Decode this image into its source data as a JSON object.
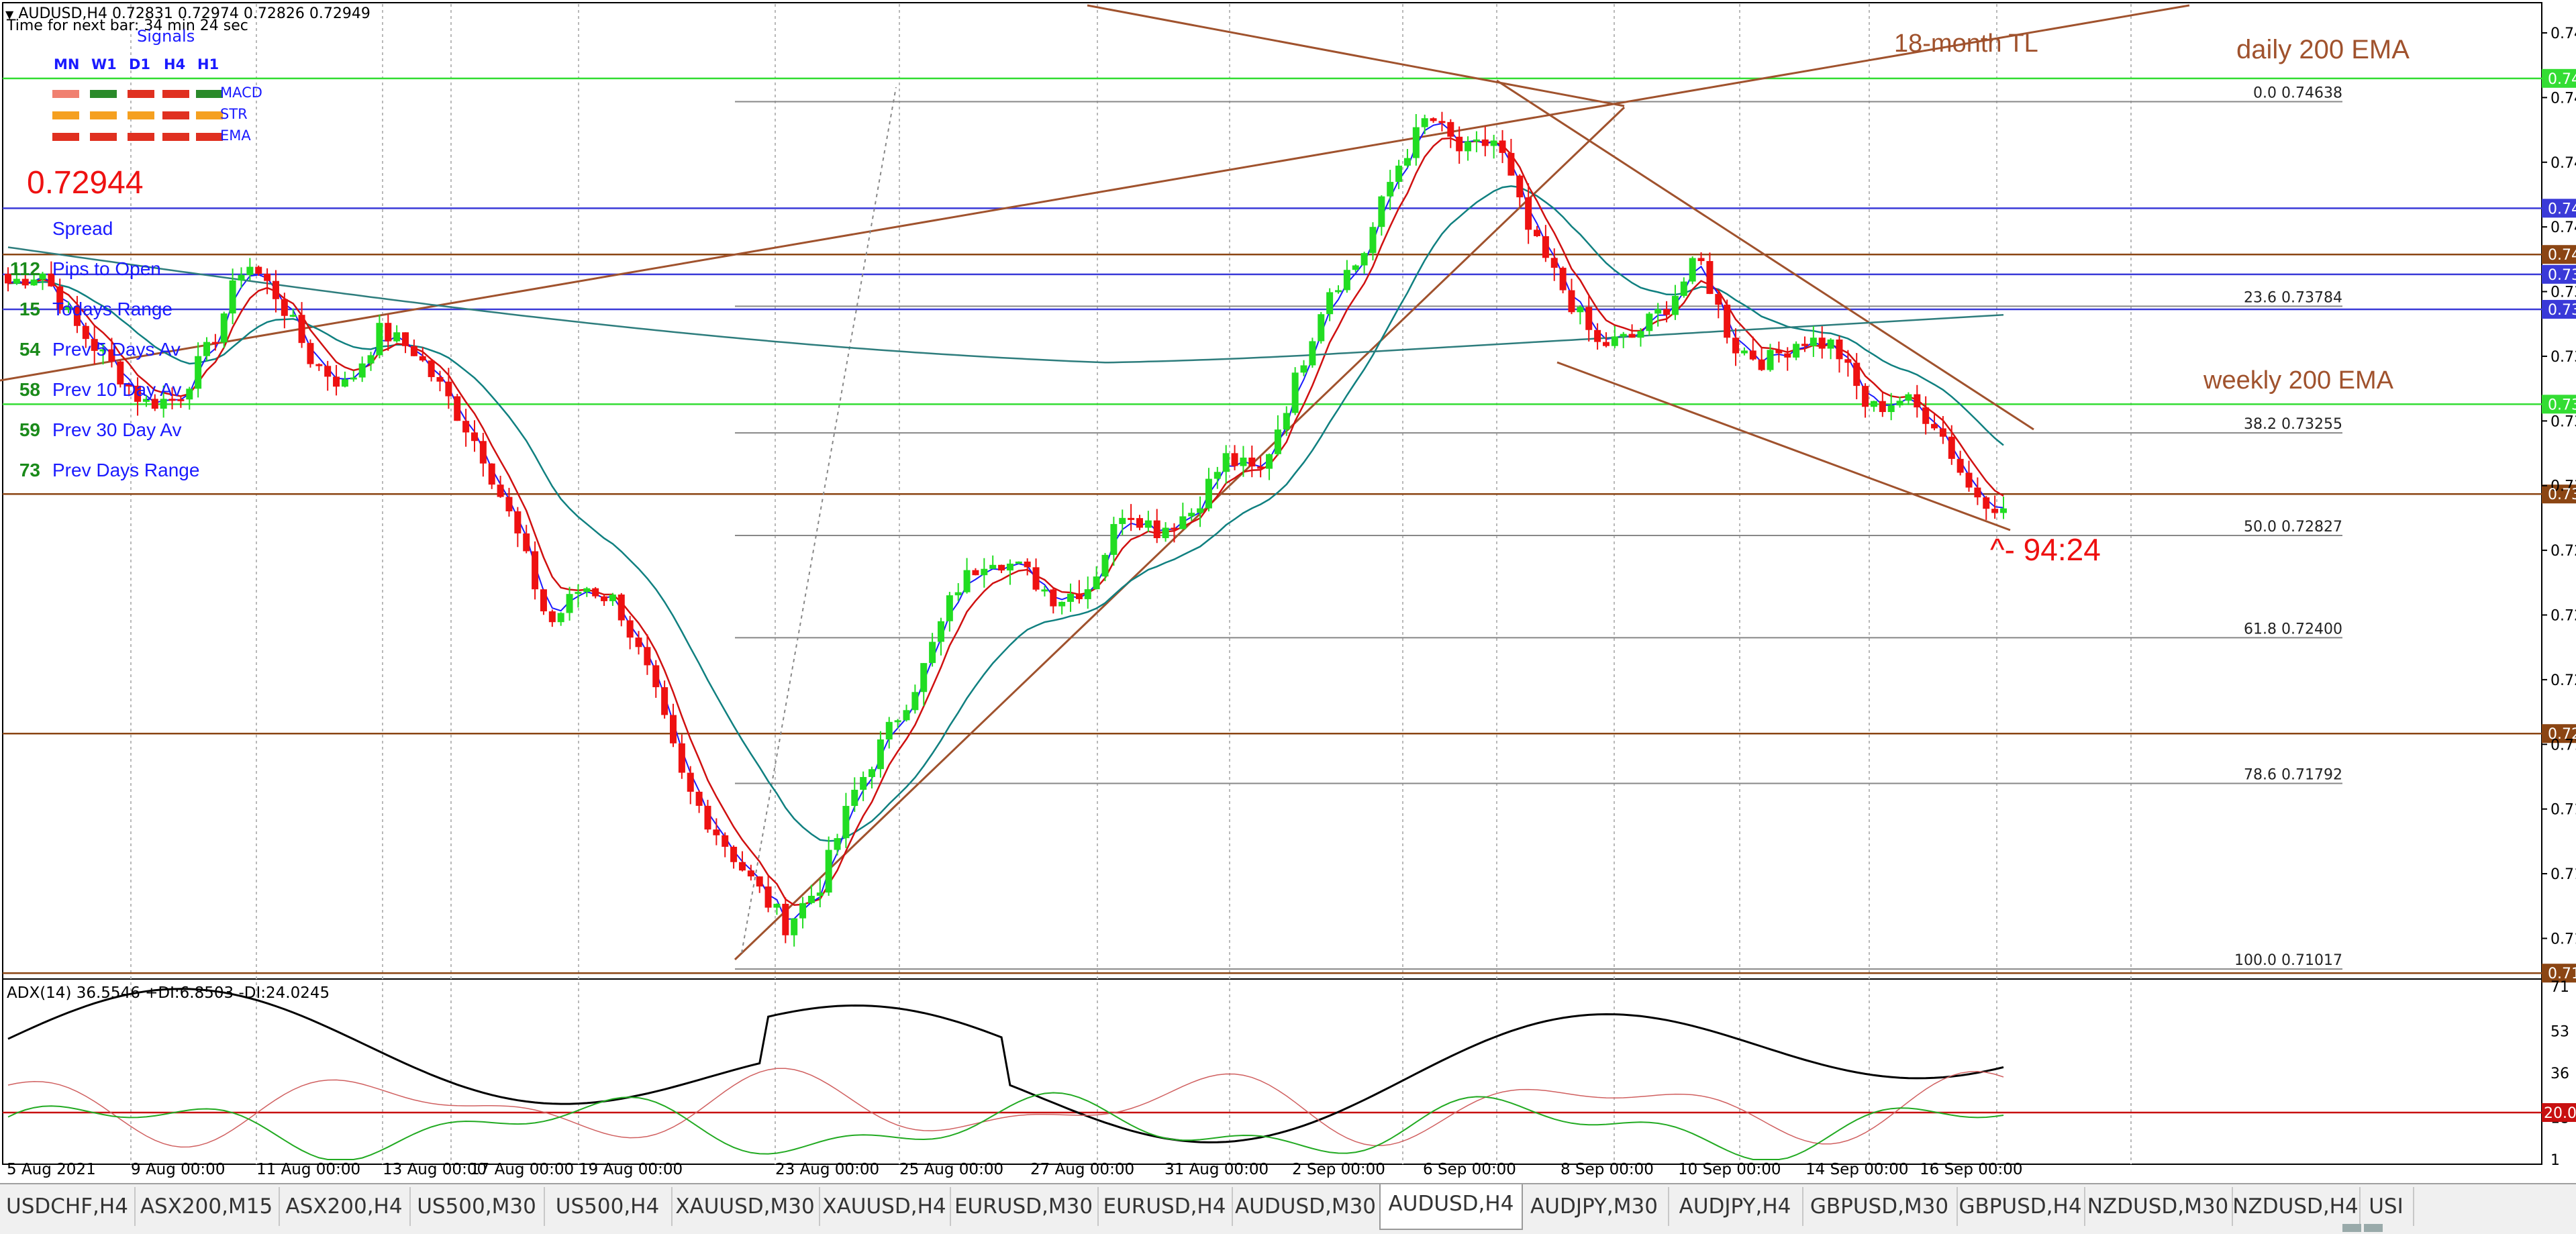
{
  "header": {
    "title": "AUDUSD,H4  0.72831 0.72974 0.72826 0.72949",
    "timer": "Time for next bar: 34 min 24 sec"
  },
  "signals": {
    "title": "Signals",
    "timeframes": [
      "MN",
      "W1",
      "D1",
      "H4",
      "H1"
    ],
    "rows": [
      {
        "label": "MACD",
        "colors": [
          "#f08070",
          "#2a8a2a",
          "#e03020",
          "#e03020",
          "#2a8a2a"
        ]
      },
      {
        "label": "STR",
        "colors": [
          "#f5a020",
          "#f5a020",
          "#f5a020",
          "#e03020",
          "#f5a020"
        ]
      },
      {
        "label": "EMA",
        "colors": [
          "#e03020",
          "#e03020",
          "#e03020",
          "#e03020",
          "#e03020"
        ]
      }
    ]
  },
  "info_panel": {
    "price": "0.72944",
    "rows": [
      {
        "value": "",
        "label": "Spread"
      },
      {
        "value": "112",
        "label": "Pips to Open"
      },
      {
        "value": "15",
        "label": "Todays Range"
      },
      {
        "value": "54",
        "label": "Prev 5 Days Av"
      },
      {
        "value": "58",
        "label": "Prev 10 Day Av"
      },
      {
        "value": "59",
        "label": "Prev 30 Day Av"
      },
      {
        "value": "73",
        "label": "Prev Days Range"
      }
    ]
  },
  "annotations": {
    "tl_18m": "18-month TL",
    "daily_ema": "daily 200 EMA",
    "weekly_ema": "weekly 200 EMA",
    "pips": "^- 94:24"
  },
  "fib_levels": [
    {
      "pct": "0.0",
      "price": "0.74638"
    },
    {
      "pct": "23.6",
      "price": "0.73784"
    },
    {
      "pct": "38.2",
      "price": "0.73255"
    },
    {
      "pct": "50.0",
      "price": "0.72827"
    },
    {
      "pct": "61.8",
      "price": "0.72400"
    },
    {
      "pct": "78.6",
      "price": "0.71792"
    },
    {
      "pct": "100.0",
      "price": "0.71017"
    }
  ],
  "price_axis": {
    "ticks": [
      "0.74925",
      "0.74655",
      "0.74385",
      "0.74115",
      "0.73845",
      "0.73575",
      "0.73305",
      "0.73035",
      "0.72765",
      "0.72495",
      "0.72225",
      "0.71955",
      "0.71685",
      "0.71415",
      "0.71145"
    ],
    "ylim": [
      0.70995,
      0.74995
    ],
    "level_labels": [
      {
        "price": "0.74735",
        "color": "#33dd33"
      },
      {
        "price": "0.74193",
        "color": "#3a3ad8"
      },
      {
        "price": "0.74000",
        "color": "#8b4513"
      },
      {
        "price": "0.73917",
        "color": "#3a3ad8"
      },
      {
        "price": "0.73771",
        "color": "#3a3ad8"
      },
      {
        "price": "0.73375",
        "color": "#33dd33"
      },
      {
        "price": "0.73000",
        "color": "#8b4513"
      },
      {
        "price": "0.72000",
        "color": "#8b4513"
      },
      {
        "price": "0.71000",
        "color": "#8b4513"
      }
    ]
  },
  "adx": {
    "label": "ADX(14) 36.5546 +DI:6.8503 -DI:24.0245",
    "ticks": [
      "71",
      "53",
      "36",
      "18",
      "1"
    ],
    "level_label": "20.0000"
  },
  "time_axis": {
    "labels": [
      "5 Aug 2021",
      "9 Aug 00:00",
      "11 Aug 00:00",
      "13 Aug 00:00",
      "17 Aug 00:00",
      "19 Aug 00:00",
      "23 Aug 00:00",
      "25 Aug 00:00",
      "27 Aug 00:00",
      "31 Aug 00:00",
      "2 Sep 00:00",
      "6 Sep 00:00",
      "8 Sep 00:00",
      "10 Sep 00:00",
      "14 Sep 00:00",
      "16 Sep 00:00"
    ]
  },
  "tabs": [
    "USDCHF,H4",
    "ASX200,M15",
    "ASX200,H4",
    "US500,M30",
    "US500,H4",
    "XAUUSD,M30",
    "XAUUSD,H4",
    "EURUSD,M30",
    "EURUSD,H4",
    "AUDUSD,M30",
    "AUDUSD,H4",
    "AUDJPY,M30",
    "AUDJPY,H4",
    "GBPUSD,M30",
    "GBPUSD,H4",
    "NZDUSD,M30",
    "NZDUSD,H4",
    "USI"
  ],
  "active_tab": "AUDUSD,H4",
  "colors": {
    "bull": "#22dd22",
    "bear": "#ee1111",
    "grid": "#b8b8b8",
    "trendline": "#a0522d",
    "ema_fast": "#1a1aff",
    "ema_mid": "#d01010",
    "ema_slow": "#108080"
  },
  "chart_data": {
    "type": "candlestick",
    "symbol": "AUDUSD",
    "timeframe": "H4",
    "close_path": [
      0.7388,
      0.7393,
      0.737,
      0.7355,
      0.7338,
      0.734,
      0.7362,
      0.7398,
      0.7382,
      0.7355,
      0.7345,
      0.7368,
      0.736,
      0.734,
      0.7318,
      0.7285,
      0.7245,
      0.7262,
      0.7255,
      0.7222,
      0.7178,
      0.7158,
      0.7138,
      0.712,
      0.7137,
      0.7175,
      0.72,
      0.7225,
      0.726,
      0.7275,
      0.7268,
      0.7256,
      0.7262,
      0.7295,
      0.7285,
      0.7293,
      0.7315,
      0.7308,
      0.7345,
      0.7385,
      0.7398,
      0.7435,
      0.7458,
      0.7442,
      0.7448,
      0.7408,
      0.7385,
      0.7362,
      0.7365,
      0.7378,
      0.7398,
      0.7362,
      0.7355,
      0.7365,
      0.7362,
      0.7335,
      0.734,
      0.733,
      0.7302,
      0.7294
    ]
  }
}
